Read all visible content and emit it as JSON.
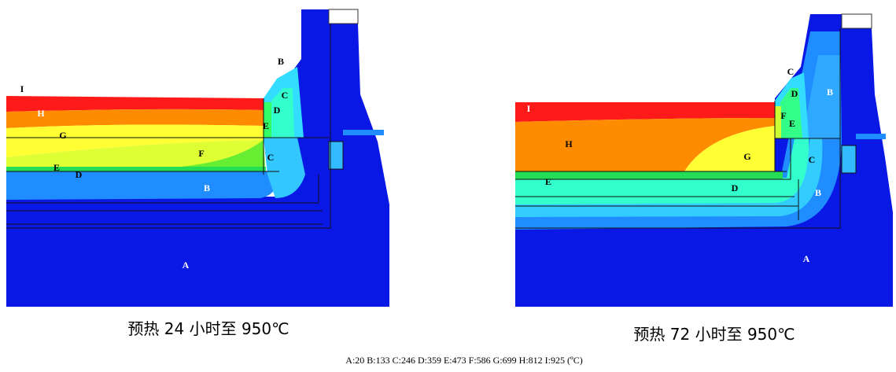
{
  "left_panel": {
    "caption": "预热 24 小时至 950℃",
    "labels": [
      "I",
      "H",
      "G",
      "F",
      "E",
      "D",
      "C",
      "D",
      "E",
      "C",
      "B",
      "B",
      "A"
    ]
  },
  "right_panel": {
    "caption": "预热 72 小时至 950℃",
    "labels": [
      "I",
      "H",
      "G",
      "F",
      "E",
      "D",
      "C",
      "B",
      "C",
      "E",
      "D",
      "B",
      "A"
    ]
  },
  "legend": {
    "items": [
      "A:20",
      "B:133",
      "C:246",
      "D:359",
      "E:473",
      "F:586",
      "G:699",
      "H:812",
      "I:925"
    ],
    "unit": "(ºC)"
  }
}
